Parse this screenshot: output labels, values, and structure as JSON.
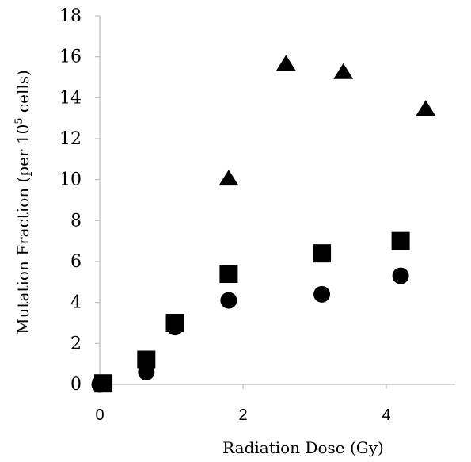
{
  "chart_data": {
    "type": "scatter",
    "title": "",
    "xlabel": "Radiation Dose (Gy)",
    "ylabel": {
      "prefix": "Mutation Fraction (per 10",
      "superscript": "5",
      "suffix": " cells)"
    },
    "xlim": [
      0,
      5.3
    ],
    "ylim": [
      0,
      18
    ],
    "x_ticks": [
      "0",
      "2",
      "4"
    ],
    "y_ticks": [
      "0",
      "2",
      "4",
      "6",
      "8",
      "10",
      "12",
      "14",
      "16",
      "18"
    ],
    "grid": false,
    "legend": "none",
    "series": [
      {
        "marker": "circle",
        "color": "#000000",
        "points": [
          {
            "x": 0.0,
            "y": 0.0
          },
          {
            "x": 0.65,
            "y": 0.6
          },
          {
            "x": 1.05,
            "y": 2.8
          },
          {
            "x": 1.8,
            "y": 4.1
          },
          {
            "x": 3.1,
            "y": 4.4
          },
          {
            "x": 4.2,
            "y": 5.3
          }
        ]
      },
      {
        "marker": "square",
        "color": "#000000",
        "points": [
          {
            "x": 0.05,
            "y": 0.05
          },
          {
            "x": 0.65,
            "y": 1.2
          },
          {
            "x": 1.05,
            "y": 3.0
          },
          {
            "x": 1.8,
            "y": 5.4
          },
          {
            "x": 3.1,
            "y": 6.4
          },
          {
            "x": 4.2,
            "y": 7.0
          }
        ]
      },
      {
        "marker": "triangle",
        "color": "#000000",
        "points": [
          {
            "x": 1.8,
            "y": 10.1
          },
          {
            "x": 2.6,
            "y": 15.7
          },
          {
            "x": 3.4,
            "y": 15.3
          },
          {
            "x": 4.55,
            "y": 13.5
          }
        ]
      }
    ]
  }
}
